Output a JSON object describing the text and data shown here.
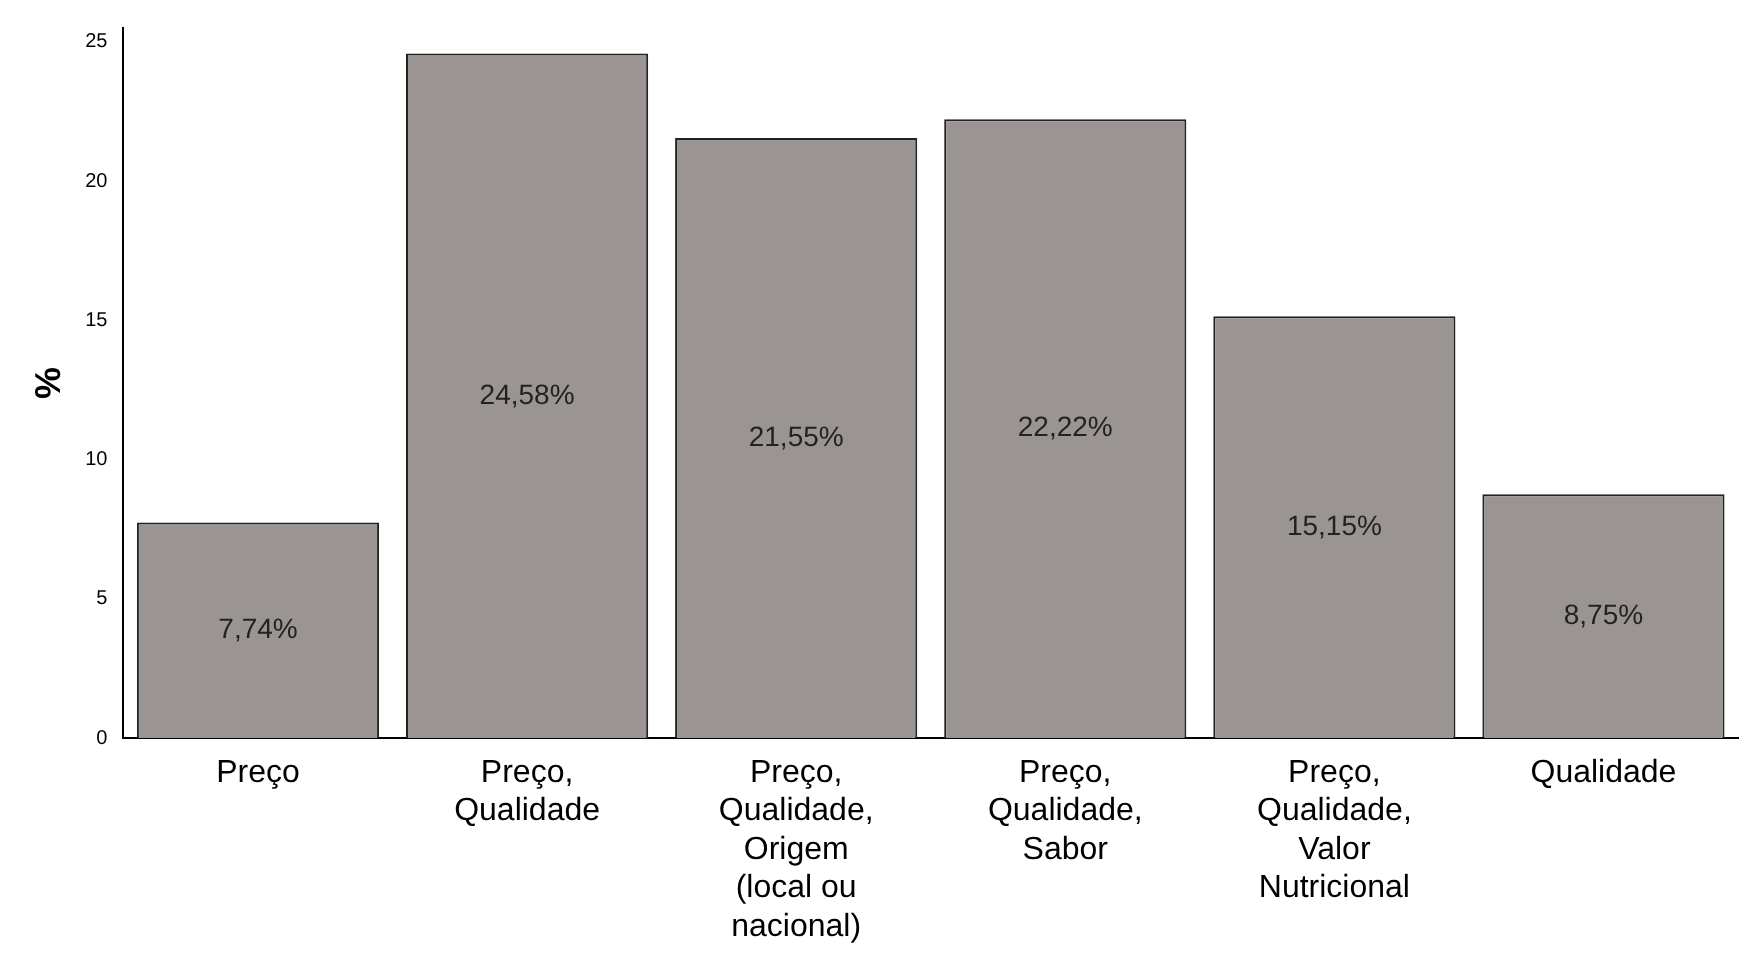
{
  "chart_data": {
    "type": "bar",
    "ylabel": "%",
    "categories": [
      "Preço",
      "Preço, Qualidade",
      "Preço, Qualidade, Origem (local ou nacional)",
      "Preço, Qualidade, Sabor",
      "Preço, Qualidade, Valor Nutricional",
      "Qualidade"
    ],
    "values": [
      7.74,
      24.58,
      21.55,
      22.22,
      15.15,
      8.75
    ],
    "value_labels": [
      "7,74%",
      "24,58%",
      "21,55%",
      "22,22%",
      "15,15%",
      "8,75%"
    ],
    "color": "#9a9593",
    "ylim": [
      0,
      25.5
    ],
    "yticks": [
      0,
      5,
      10,
      15,
      20,
      25
    ],
    "grid": false,
    "legend": false
  }
}
